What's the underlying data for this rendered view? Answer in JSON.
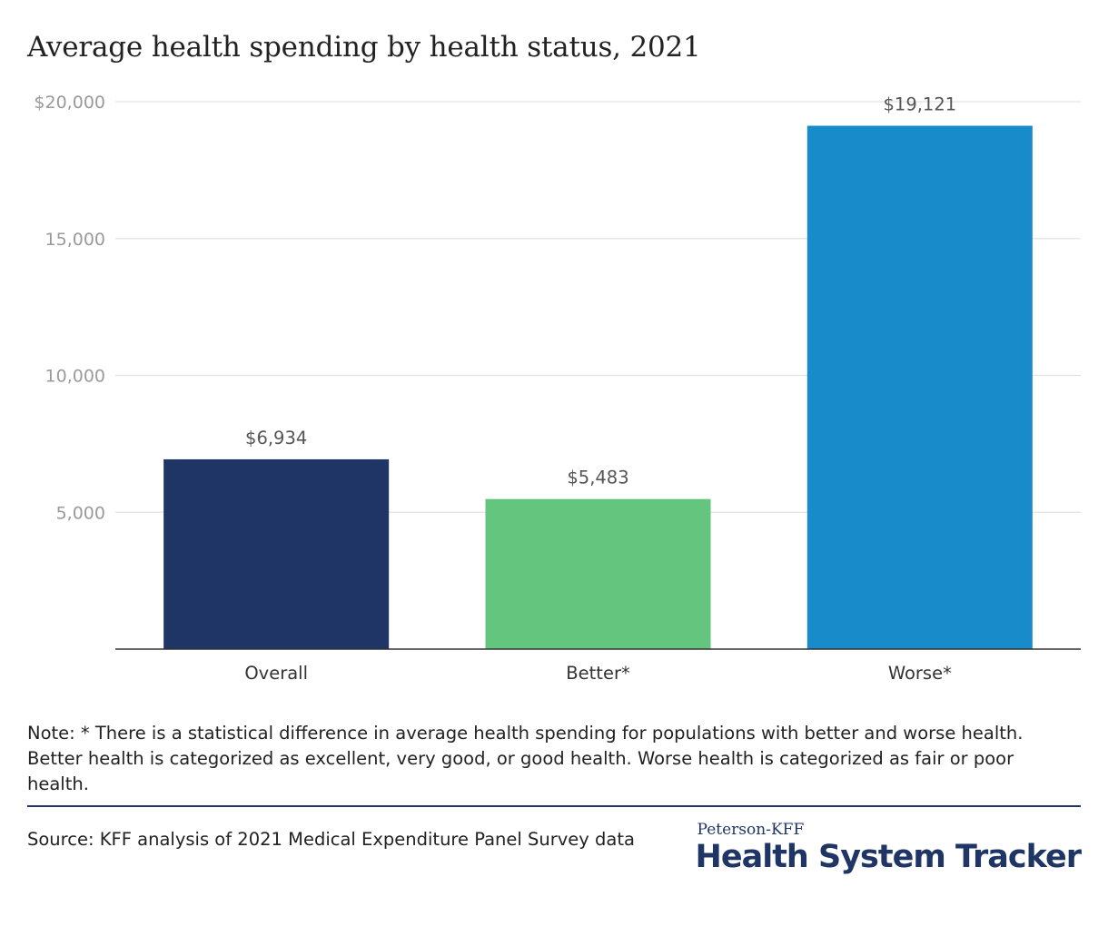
{
  "header": {
    "title": "Average health spending by health status, 2021"
  },
  "chart_data": {
    "type": "bar",
    "title": "Average health spending by health status, 2021",
    "xlabel": "",
    "ylabel": "",
    "categories": [
      "Overall",
      "Better*",
      "Worse*"
    ],
    "values": [
      6934,
      5483,
      19121
    ],
    "value_labels": [
      "$6,934",
      "$5,483",
      "$19,121"
    ],
    "colors": [
      "#1f3566",
      "#63c57e",
      "#188bcb"
    ],
    "ylim": [
      0,
      20000
    ],
    "y_ticks": [
      5000,
      10000,
      15000,
      20000
    ],
    "y_tick_labels": [
      "5,000",
      "10,000",
      "15,000",
      "$20,000"
    ],
    "grid": true,
    "legend": "none"
  },
  "footer": {
    "note": "Note: * There is a statistical difference in average health spending for populations with better and worse health. Better health is categorized as excellent, very good, or good health. Worse health is categorized as  fair or poor health.",
    "source": "Source: KFF analysis of 2021 Medical Expenditure Panel Survey data",
    "logo_top": "Peterson-KFF",
    "logo_main": "Health System Tracker"
  }
}
